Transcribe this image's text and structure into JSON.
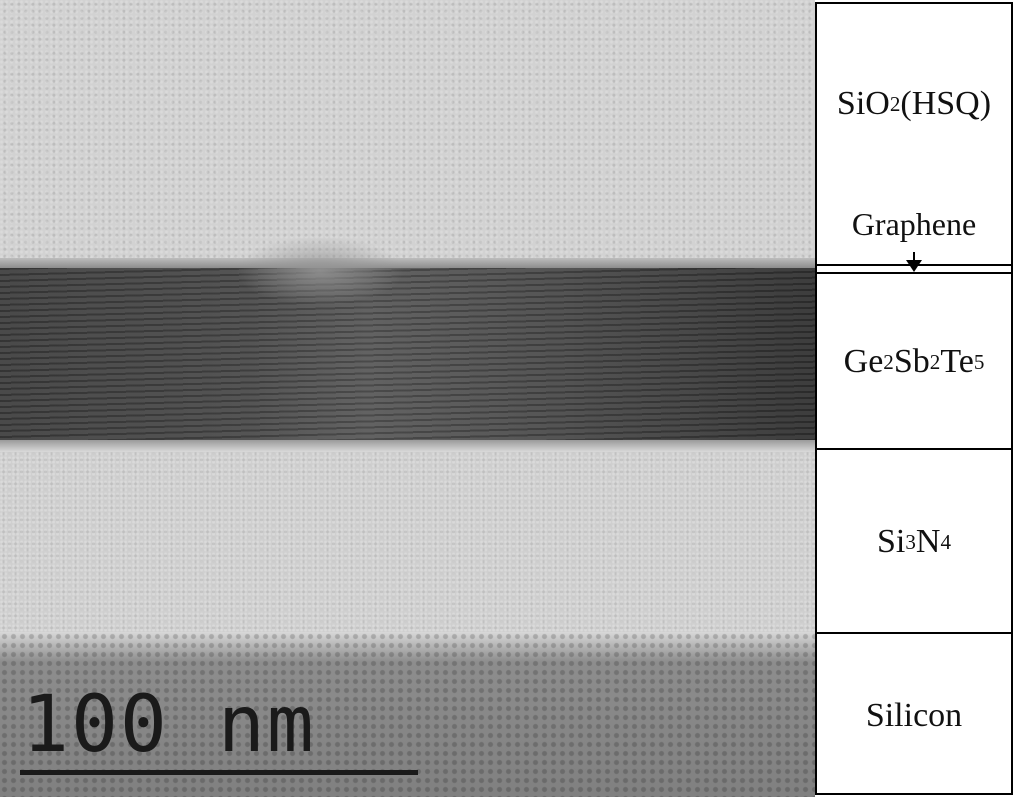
{
  "figure": {
    "scale_bar": {
      "label": "100 nm"
    },
    "layers": {
      "sio2": {
        "base": "SiO",
        "sub": "2",
        "suffix": "(HSQ)"
      },
      "graphene": {
        "label": "Graphene"
      },
      "gst": {
        "p1": "Ge",
        "s1": "2",
        "p2": "Sb",
        "s2": "2",
        "p3": "Te",
        "s3": "5"
      },
      "sin": {
        "p1": "Si",
        "s1": "3",
        "p2": "N",
        "s2": "4"
      },
      "si": {
        "label": "Silicon"
      }
    }
  }
}
